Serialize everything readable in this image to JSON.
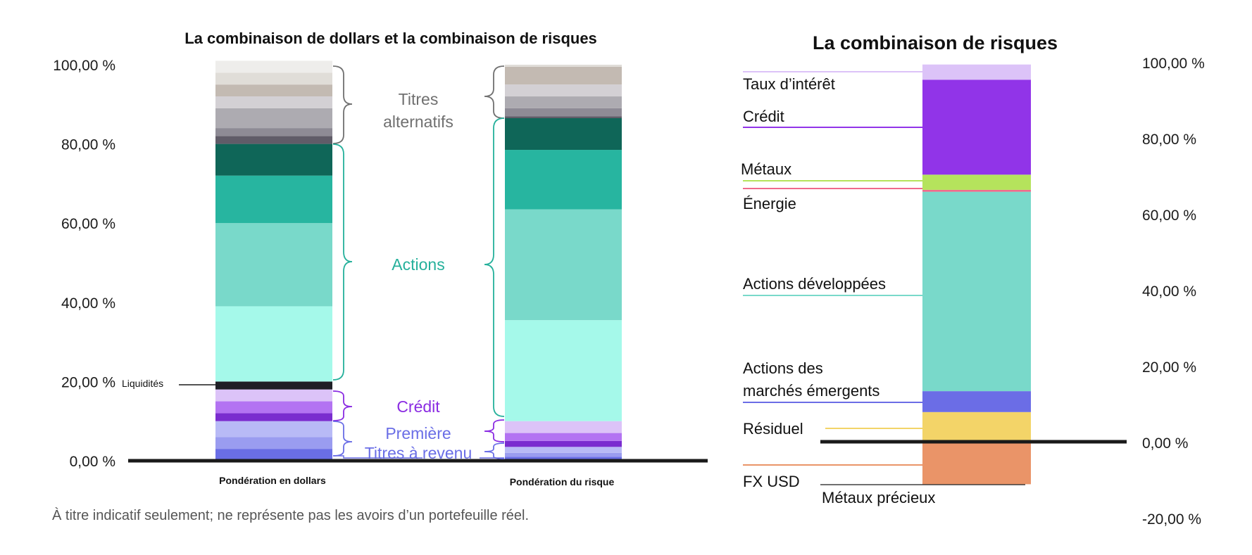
{
  "chart_data": [
    {
      "type": "bar",
      "stacked": true,
      "title": "La combinaison de dollars et la combinaison de risques",
      "categories": [
        "Pondération en dollars",
        "Pondération du risque"
      ],
      "ylim": [
        0,
        100
      ],
      "yticks": [
        "0,00 %",
        "20,00 %",
        "40,00 %",
        "60,00 %",
        "80,00 %",
        "100,00 %"
      ],
      "ytick_values": [
        0,
        20,
        40,
        60,
        80,
        100
      ],
      "segment_colors": [
        "#6a6ee6",
        "#9a9cf0",
        "#b8baf6",
        "#7a2ccf",
        "#b373f2",
        "#dcc3f8",
        "#1f1f26",
        "#a5f9ea",
        "#79d9ca",
        "#27b5a0",
        "#0f6658",
        "#605c68",
        "#8e8b95",
        "#adabb1",
        "#d3d0d4",
        "#c3bab2",
        "#e0ddd8",
        "#eeedeb"
      ],
      "series_values": [
        [
          3.0,
          3.0,
          4.0,
          2.0,
          3.0,
          3.0,
          2.0,
          19.0,
          21.0,
          12.0,
          8.0,
          2.0,
          2.0,
          5.0,
          3.0,
          3.0,
          3.0,
          3.0
        ],
        [
          1.0,
          1.0,
          1.5,
          1.5,
          2.0,
          3.0,
          0.0,
          25.5,
          28.0,
          15.0,
          8.0,
          0.5,
          2.0,
          3.0,
          3.0,
          4.5,
          0.5,
          0.0
        ]
      ],
      "groups": [
        {
          "name": "Titres alternatifs",
          "color": "#707070"
        },
        {
          "name": "Actions",
          "color": "#25b09b"
        },
        {
          "name": "Crédit",
          "color": "#8a2be2"
        },
        {
          "name": "Première",
          "color": "#6a6ee6"
        },
        {
          "name": "Titres à revenu",
          "color": "#6a6ee6"
        }
      ],
      "annotations": [
        "Liquidités"
      ]
    },
    {
      "type": "bar",
      "stacked": true,
      "title": "La combinaison de risques",
      "ylim": [
        -20,
        100
      ],
      "yticks": [
        "-20,00 %",
        "0,00 %",
        "20,00 %",
        "40,00 %",
        "60,00 %",
        "80,00 %",
        "100,00 %"
      ],
      "ytick_values": [
        -20,
        0,
        20,
        40,
        60,
        80,
        100
      ],
      "series": [
        {
          "name": "FX USD",
          "value": -11.0,
          "color": "#ea9468"
        },
        {
          "name": "Résiduel",
          "value": 8.0,
          "color": "#f3d468"
        },
        {
          "name": "Actions des marchés émergents",
          "value": 5.5,
          "color": "#6b6de6"
        },
        {
          "name": "Actions développées",
          "value": 52.5,
          "color": "#79d9ca"
        },
        {
          "name": "Énergie",
          "value": 0.5,
          "color": "#f06a8c"
        },
        {
          "name": "Métaux",
          "value": 4.0,
          "color": "#b5e35c"
        },
        {
          "name": "Crédit",
          "value": 25.0,
          "color": "#9134e8"
        },
        {
          "name": "Taux d’intérêt",
          "value": 4.0,
          "color": "#dcc3f8"
        }
      ],
      "extra_labels": [
        "Métaux précieux"
      ]
    }
  ],
  "footnote": "À titre indicatif seulement; ne représente pas les avoirs d’un portefeuille réel."
}
